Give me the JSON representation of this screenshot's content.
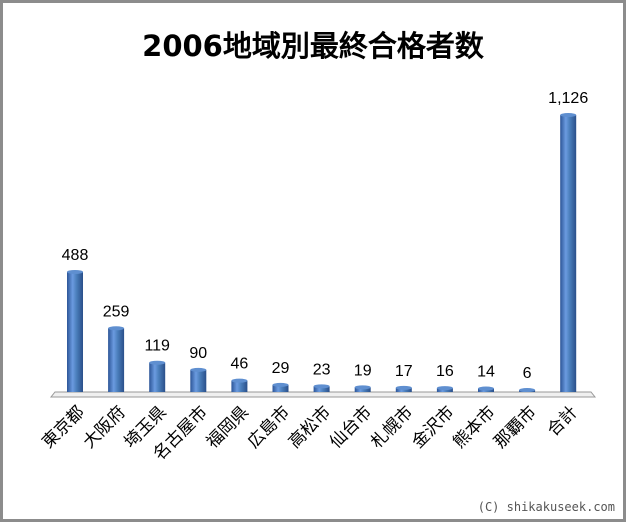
{
  "chart_data": {
    "type": "bar",
    "title": "2006地域別最終合格者数",
    "categories": [
      "東京都",
      "大阪府",
      "埼玉県",
      "名古屋市",
      "福岡県",
      "広島市",
      "高松市",
      "仙台市",
      "札幌市",
      "金沢市",
      "熊本市",
      "那覇市",
      "合計"
    ],
    "values": [
      488,
      259,
      119,
      90,
      46,
      29,
      23,
      19,
      17,
      16,
      14,
      6,
      1126
    ],
    "data_labels": [
      "488",
      "259",
      "119",
      "90",
      "46",
      "29",
      "23",
      "19",
      "17",
      "16",
      "14",
      "6",
      "1,126"
    ],
    "xlabel": "",
    "ylabel": "",
    "ylim": [
      0,
      1126
    ],
    "grid": false,
    "legend": "none",
    "bar_color": "#4a7ebb"
  },
  "watermark": "(C) shikakuseek.com"
}
